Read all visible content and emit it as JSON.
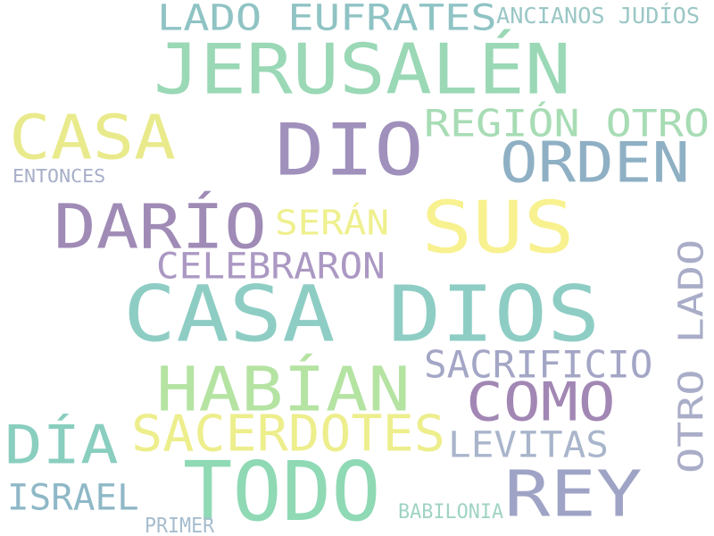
{
  "words": [
    {
      "text": "LADO EUFRATES",
      "color": "#8fc3c4"
    },
    {
      "text": "ANCIANOS JUDÍOS",
      "color": "#9ac7c6"
    },
    {
      "text": "JERUSALÉN",
      "color": "#9ad8b6"
    },
    {
      "text": "CASA",
      "color": "#e9ea8b"
    },
    {
      "text": "DIO",
      "color": "#a090bc"
    },
    {
      "text": "REGIÓN OTRO",
      "color": "#a7dcb4"
    },
    {
      "text": "ORDEN",
      "color": "#8fb0c4"
    },
    {
      "text": "ENTONCES",
      "color": "#a7aec9"
    },
    {
      "text": "DARÍO",
      "color": "#9f8bb6"
    },
    {
      "text": "SERÁN",
      "color": "#eff08e"
    },
    {
      "text": "SUS",
      "color": "#f8f18f"
    },
    {
      "text": "CELEBRARON",
      "color": "#ab98c3"
    },
    {
      "text": "OTRO LADO",
      "color": "#a9adc8"
    },
    {
      "text": "CASA DIOS",
      "color": "#8ecdc4"
    },
    {
      "text": "SACRIFICIO",
      "color": "#a3a6c5"
    },
    {
      "text": "HABÍAN",
      "color": "#b4e3a2"
    },
    {
      "text": "COMO",
      "color": "#a287b4"
    },
    {
      "text": "DÍA",
      "color": "#89cebf"
    },
    {
      "text": "SACERDOTES",
      "color": "#edee8c"
    },
    {
      "text": "LEVITAS",
      "color": "#a9b5cb"
    },
    {
      "text": "TODO",
      "color": "#8fd9b5"
    },
    {
      "text": "REY",
      "color": "#9fa3c5"
    },
    {
      "text": "ISRAEL",
      "color": "#8fb8c7"
    },
    {
      "text": "BABILONIA",
      "color": "#9fd3c4"
    },
    {
      "text": "PRIMER",
      "color": "#a6bdcf"
    }
  ]
}
